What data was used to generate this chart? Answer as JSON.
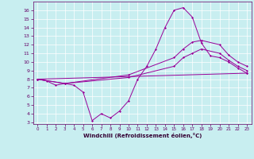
{
  "xlabel": "Windchill (Refroidissement éolien,°C)",
  "background_color": "#c8eef0",
  "line_color": "#990099",
  "grid_color": "#ffffff",
  "xlim": [
    -0.5,
    23.5
  ],
  "ylim": [
    2.8,
    17.0
  ],
  "xticks": [
    0,
    1,
    2,
    3,
    4,
    5,
    6,
    7,
    8,
    9,
    10,
    11,
    12,
    13,
    14,
    15,
    16,
    17,
    18,
    19,
    20,
    21,
    22,
    23
  ],
  "yticks": [
    3,
    4,
    5,
    6,
    7,
    8,
    9,
    10,
    11,
    12,
    13,
    14,
    15,
    16
  ],
  "series": [
    {
      "x": [
        0,
        1,
        2,
        3,
        4,
        5,
        6,
        7,
        8,
        9,
        10,
        11,
        12,
        13,
        14,
        15,
        16,
        17,
        18,
        19,
        20,
        21,
        22,
        23
      ],
      "y": [
        8.0,
        7.8,
        7.3,
        7.5,
        7.3,
        6.5,
        3.2,
        4.0,
        3.5,
        4.3,
        5.5,
        8.0,
        9.5,
        11.5,
        14.0,
        16.0,
        16.3,
        15.2,
        12.2,
        10.7,
        10.5,
        10.0,
        9.3,
        8.7
      ]
    },
    {
      "x": [
        0,
        3,
        10,
        15,
        16,
        17,
        18,
        20,
        21,
        22,
        23
      ],
      "y": [
        8.0,
        7.5,
        8.5,
        10.5,
        11.5,
        12.3,
        12.5,
        12.0,
        10.8,
        10.0,
        9.5
      ]
    },
    {
      "x": [
        0,
        3,
        10,
        15,
        16,
        17,
        18,
        20,
        21,
        22,
        23
      ],
      "y": [
        8.0,
        7.5,
        8.2,
        9.5,
        10.5,
        11.0,
        11.5,
        11.0,
        10.2,
        9.5,
        9.0
      ]
    },
    {
      "x": [
        0,
        23
      ],
      "y": [
        8.0,
        8.7
      ]
    }
  ]
}
